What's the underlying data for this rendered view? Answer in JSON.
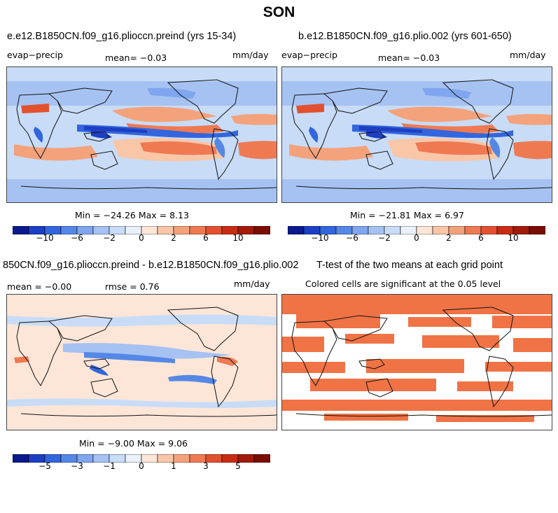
{
  "season": "SON",
  "panels": {
    "p1": {
      "title": "e.e12.B1850CN.f09_g16.plioccn.preind (yrs 15-34)",
      "left_label": "evap−precip",
      "mean_label": "mean=  −0.03",
      "units": "mm/day",
      "minmax": "Min = −24.26 Max =   8.13"
    },
    "p2": {
      "title": "b.e12.B1850CN.f09_g16.plio.002 (yrs 601-650)",
      "left_label": "evap−precip",
      "mean_label": "mean=  −0.03",
      "units": "mm/day",
      "minmax": "Min = −21.81 Max =   6.97"
    },
    "p3": {
      "title": "850CN.f09_g16.plioccn.preind - b.e12.B1850CN.f09_g16.plio.002",
      "mean_label": "mean = −0.00",
      "rmse_label": "rmse =   0.76",
      "units": "mm/day",
      "minmax": "Min = −9.00 Max =   9.06"
    },
    "p4": {
      "title": "T-test of the two means at each grid point",
      "subtitle": "Colored cells are significant at the 0.05 level"
    }
  },
  "colorbars": {
    "top": {
      "colors": [
        "#0a1a8c",
        "#1c3fc4",
        "#3366dd",
        "#5588e6",
        "#7fa6ee",
        "#a6c2f2",
        "#c8dcf7",
        "#eaf1fb",
        "#fde6d8",
        "#f9c6a8",
        "#f4a27c",
        "#ef7a52",
        "#e25030",
        "#c82d14",
        "#a11a0a",
        "#7a0d04"
      ],
      "tick_labels": [
        "−10",
        "−6",
        "−2",
        "0",
        "2",
        "6",
        "10"
      ]
    },
    "bottom": {
      "colors": [
        "#0a1a8c",
        "#1c3fc4",
        "#3366dd",
        "#5588e6",
        "#7fa6ee",
        "#a6c2f2",
        "#c8dcf7",
        "#eaf1fb",
        "#fde6d8",
        "#f9c6a8",
        "#f4a27c",
        "#ef7a52",
        "#e25030",
        "#c82d14",
        "#a11a0a",
        "#7a0d04"
      ],
      "tick_labels": [
        "−5",
        "−3",
        "−1",
        "0",
        "1",
        "3",
        "5"
      ]
    }
  },
  "map_colors": {
    "ocean_base": "#c8dcf7",
    "diff_base": "#fde6d8",
    "significant": "#f07346",
    "land_line": "#111111"
  }
}
